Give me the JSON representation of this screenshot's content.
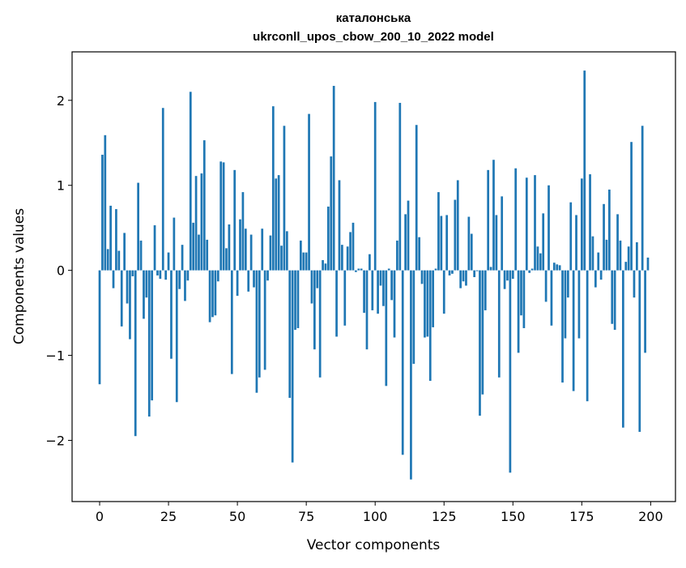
{
  "chart_data": {
    "type": "bar",
    "title_line1": "каталонська",
    "title_line2": "ukrconll_upos_cbow_200_10_2022 model",
    "xlabel": "Vector components",
    "ylabel": "Components values",
    "xlim": [
      -10,
      209
    ],
    "ylim": [
      -2.72,
      2.57
    ],
    "xticks": [
      0,
      25,
      50,
      75,
      100,
      125,
      150,
      175,
      200
    ],
    "yticks": [
      -2,
      -1,
      0,
      1,
      2
    ],
    "ytick_labels": [
      "−2",
      "−1",
      "0",
      "1",
      "2"
    ],
    "bar_color": "#1f77b4",
    "series": [
      {
        "name": "component values",
        "values": [
          -1.34,
          1.36,
          1.59,
          0.25,
          0.76,
          -0.21,
          0.72,
          0.23,
          -0.66,
          0.44,
          -0.39,
          -0.81,
          -0.07,
          -1.95,
          1.03,
          0.35,
          -0.57,
          -0.32,
          -1.72,
          -1.53,
          0.53,
          -0.06,
          -0.1,
          1.91,
          -0.11,
          0.21,
          -1.04,
          0.62,
          -1.55,
          -0.22,
          0.3,
          -0.36,
          -0.12,
          2.1,
          0.56,
          1.11,
          0.42,
          1.14,
          1.53,
          0.36,
          -0.61,
          -0.55,
          -0.53,
          -0.13,
          1.28,
          1.27,
          0.26,
          0.54,
          -1.22,
          1.18,
          -0.3,
          0.6,
          0.92,
          0.49,
          -0.25,
          0.42,
          -0.2,
          -1.44,
          -1.26,
          0.49,
          -1.17,
          -0.12,
          0.41,
          1.93,
          1.08,
          1.12,
          0.29,
          1.7,
          0.46,
          -1.5,
          -2.26,
          -0.7,
          -0.68,
          0.35,
          0.21,
          0.21,
          1.84,
          -0.39,
          -0.93,
          -0.21,
          -1.26,
          0.12,
          0.08,
          0.75,
          1.34,
          2.17,
          -0.78,
          1.06,
          0.3,
          -0.65,
          0.28,
          0.45,
          0.56,
          -0.02,
          0.02,
          0.02,
          -0.5,
          -0.93,
          0.19,
          -0.47,
          1.98,
          -0.51,
          -0.18,
          -0.42,
          -1.36,
          0.02,
          -0.35,
          -0.79,
          0.35,
          1.97,
          -2.17,
          0.66,
          0.82,
          -2.46,
          -1.1,
          1.71,
          0.39,
          -0.16,
          -0.79,
          -0.78,
          -1.3,
          -0.67,
          0.02,
          0.92,
          0.64,
          -0.51,
          0.65,
          -0.06,
          -0.04,
          0.83,
          1.06,
          -0.21,
          -0.13,
          -0.18,
          0.63,
          0.43,
          -0.08,
          -0.01,
          -1.71,
          -1.46,
          -0.47,
          1.18,
          0.04,
          1.3,
          0.65,
          -1.26,
          0.87,
          -0.22,
          -0.12,
          -2.38,
          -0.1,
          1.2,
          -0.97,
          -0.53,
          -0.68,
          1.09,
          -0.03,
          0.02,
          1.12,
          0.28,
          0.2,
          0.67,
          -0.37,
          1.0,
          -0.65,
          0.09,
          0.07,
          0.06,
          -1.32,
          -0.8,
          -0.32,
          0.8,
          -1.42,
          0.65,
          -0.8,
          1.08,
          2.35,
          -1.54,
          1.13,
          0.4,
          -0.2,
          0.21,
          -0.11,
          0.78,
          0.36,
          0.95,
          -0.63,
          -0.7,
          0.66,
          0.35,
          -1.85,
          0.1,
          0.28,
          1.51,
          -0.32,
          0.33,
          -1.9,
          1.7,
          -0.97,
          0.15
        ]
      }
    ]
  }
}
